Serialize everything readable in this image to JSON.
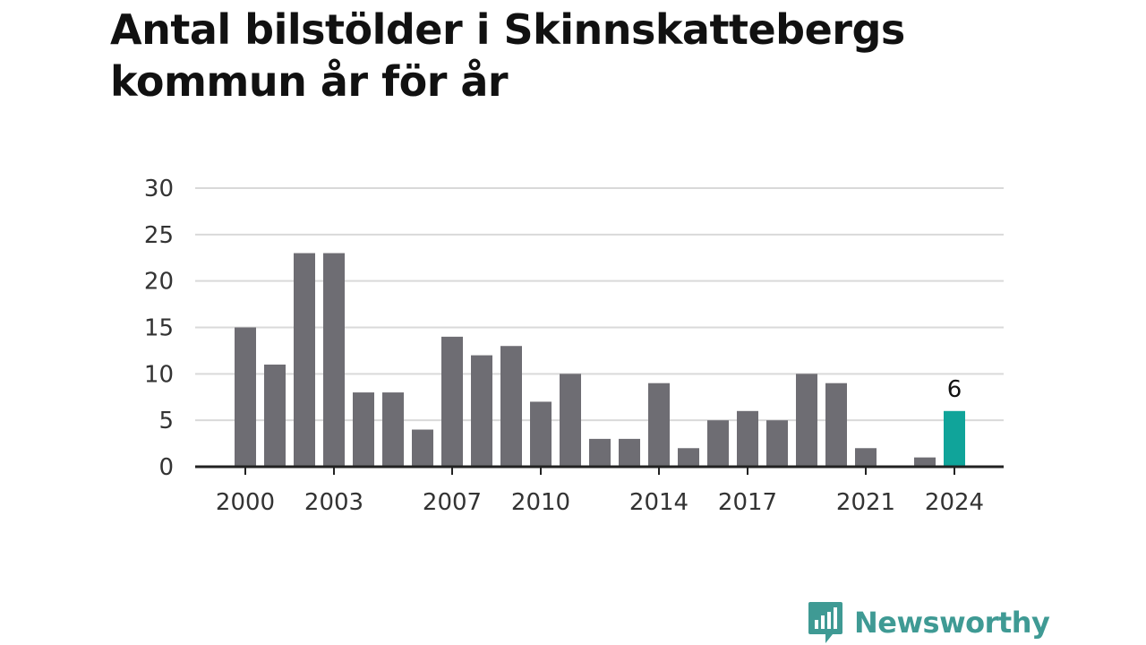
{
  "title": "Antal bilstölder i Skinnskattebergs kommun år för år",
  "colors": {
    "bar": "#6e6d73",
    "highlight": "#10a49a",
    "grid": "#d9d9d9",
    "axis": "#222222",
    "brand": "#3f9a94"
  },
  "chart_data": {
    "type": "bar",
    "title": "Antal bilstölder i Skinnskattebergs kommun år för år",
    "xlabel": "",
    "ylabel": "",
    "ylim": [
      0,
      30
    ],
    "yticks": [
      0,
      5,
      10,
      15,
      20,
      25,
      30
    ],
    "x": [
      2000,
      2001,
      2002,
      2003,
      2004,
      2005,
      2006,
      2007,
      2008,
      2009,
      2010,
      2011,
      2012,
      2013,
      2014,
      2015,
      2016,
      2017,
      2018,
      2019,
      2020,
      2021,
      2022,
      2023,
      2024
    ],
    "values": [
      15,
      11,
      23,
      23,
      8,
      8,
      4,
      14,
      12,
      13,
      7,
      10,
      3,
      3,
      9,
      2,
      5,
      6,
      5,
      10,
      9,
      2,
      0,
      1,
      6
    ],
    "xtick_labels": [
      "2000",
      "2003",
      "2007",
      "2010",
      "2014",
      "2017",
      "2021",
      "2024"
    ],
    "highlight": {
      "x": 2024,
      "label": "6"
    },
    "grid": true,
    "legend": "none"
  },
  "logo": {
    "name": "Newsworthy",
    "icon": "bar-chart-speech-bubble-icon"
  }
}
